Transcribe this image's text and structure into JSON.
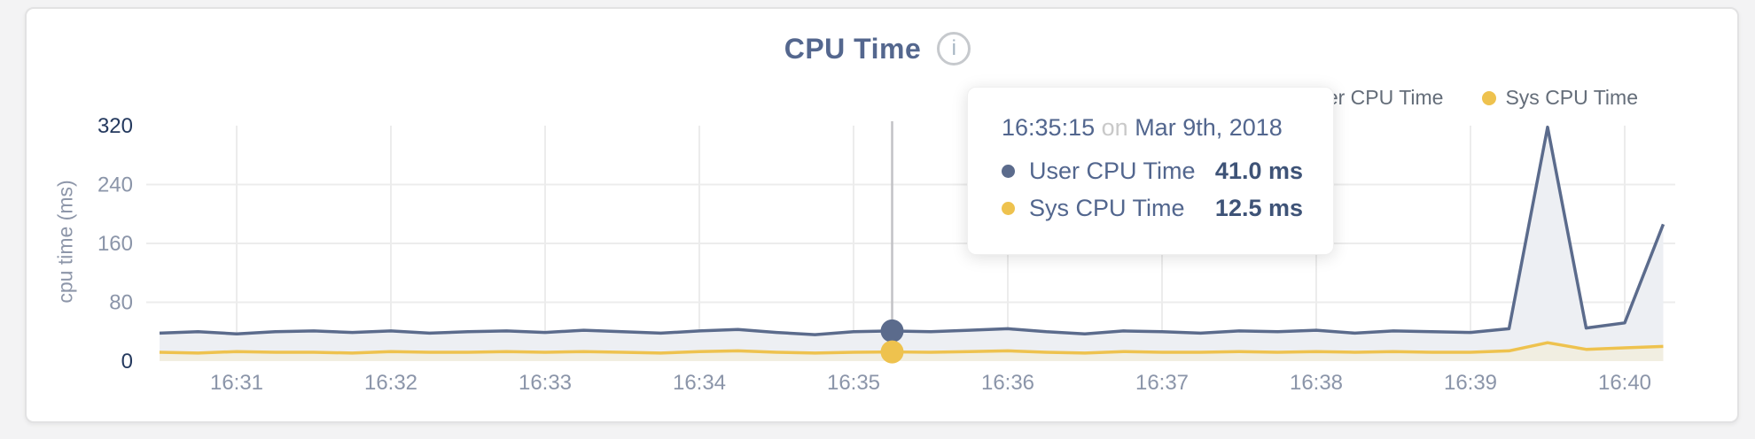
{
  "title": "CPU Time",
  "info_icon_glyph": "i",
  "colors": {
    "user": "#5b6b8c",
    "sys": "#eec24e",
    "user_fill": "#edeff3",
    "sys_fill": "#f1eee1",
    "grid": "#ececec",
    "crosshair": "#c2c2c5",
    "axis_tick": "#8b95a9",
    "axis_tick_emphasis": "#24395e"
  },
  "legend": [
    {
      "label": "User CPU Time",
      "color": "#5b6b8c"
    },
    {
      "label": "Sys CPU Time",
      "color": "#eec24e"
    }
  ],
  "y_axis": {
    "label": "cpu time (ms)",
    "ticks": [
      0,
      80,
      160,
      240,
      320
    ]
  },
  "x_axis": {
    "ticks": [
      "16:31",
      "16:32",
      "16:33",
      "16:34",
      "16:35",
      "16:36",
      "16:37",
      "16:38",
      "16:39",
      "16:40"
    ]
  },
  "tooltip": {
    "time": "16:35:15",
    "conjunction": "on",
    "date": "Mar 9th, 2018",
    "rows": [
      {
        "label": "User CPU Time",
        "value": "41.0 ms",
        "color": "#5b6b8c"
      },
      {
        "label": "Sys CPU Time",
        "value": "12.5 ms",
        "color": "#eec24e"
      }
    ]
  },
  "chart_data": {
    "type": "area",
    "title": "CPU Time",
    "xlabel": "",
    "ylabel": "cpu time (ms)",
    "ylim": [
      0,
      320
    ],
    "grid": true,
    "legend_position": "top-right",
    "x": [
      "16:30:30",
      "16:30:45",
      "16:31:00",
      "16:31:15",
      "16:31:30",
      "16:31:45",
      "16:32:00",
      "16:32:15",
      "16:32:30",
      "16:32:45",
      "16:33:00",
      "16:33:15",
      "16:33:30",
      "16:33:45",
      "16:34:00",
      "16:34:15",
      "16:34:30",
      "16:34:45",
      "16:35:00",
      "16:35:15",
      "16:35:30",
      "16:35:45",
      "16:36:00",
      "16:36:15",
      "16:36:30",
      "16:36:45",
      "16:37:00",
      "16:37:15",
      "16:37:30",
      "16:37:45",
      "16:38:00",
      "16:38:15",
      "16:38:30",
      "16:38:45",
      "16:39:00",
      "16:39:15",
      "16:39:30",
      "16:39:45",
      "16:40:00",
      "16:40:15"
    ],
    "series": [
      {
        "name": "User CPU Time",
        "color": "#5b6b8c",
        "values": [
          38,
          40,
          37,
          40,
          41,
          39,
          41,
          38,
          40,
          41,
          39,
          42,
          40,
          38,
          41,
          43,
          39,
          36,
          40,
          41,
          40,
          42,
          44,
          40,
          37,
          41,
          40,
          38,
          41,
          40,
          42,
          38,
          41,
          40,
          39,
          44,
          318,
          45,
          52,
          186
        ]
      },
      {
        "name": "Sys CPU Time",
        "color": "#eec24e",
        "values": [
          12,
          11,
          13,
          12,
          12,
          11,
          13,
          12,
          12,
          13,
          12,
          13,
          12,
          11,
          13,
          14,
          12,
          11,
          12,
          12.5,
          12,
          13,
          14,
          12,
          11,
          13,
          12,
          12,
          13,
          12,
          13,
          12,
          13,
          12,
          12,
          14,
          25,
          16,
          18,
          20
        ]
      }
    ],
    "hover_point": {
      "time": "16:35:15",
      "user_cpu_ms": 41.0,
      "sys_cpu_ms": 12.5
    }
  }
}
